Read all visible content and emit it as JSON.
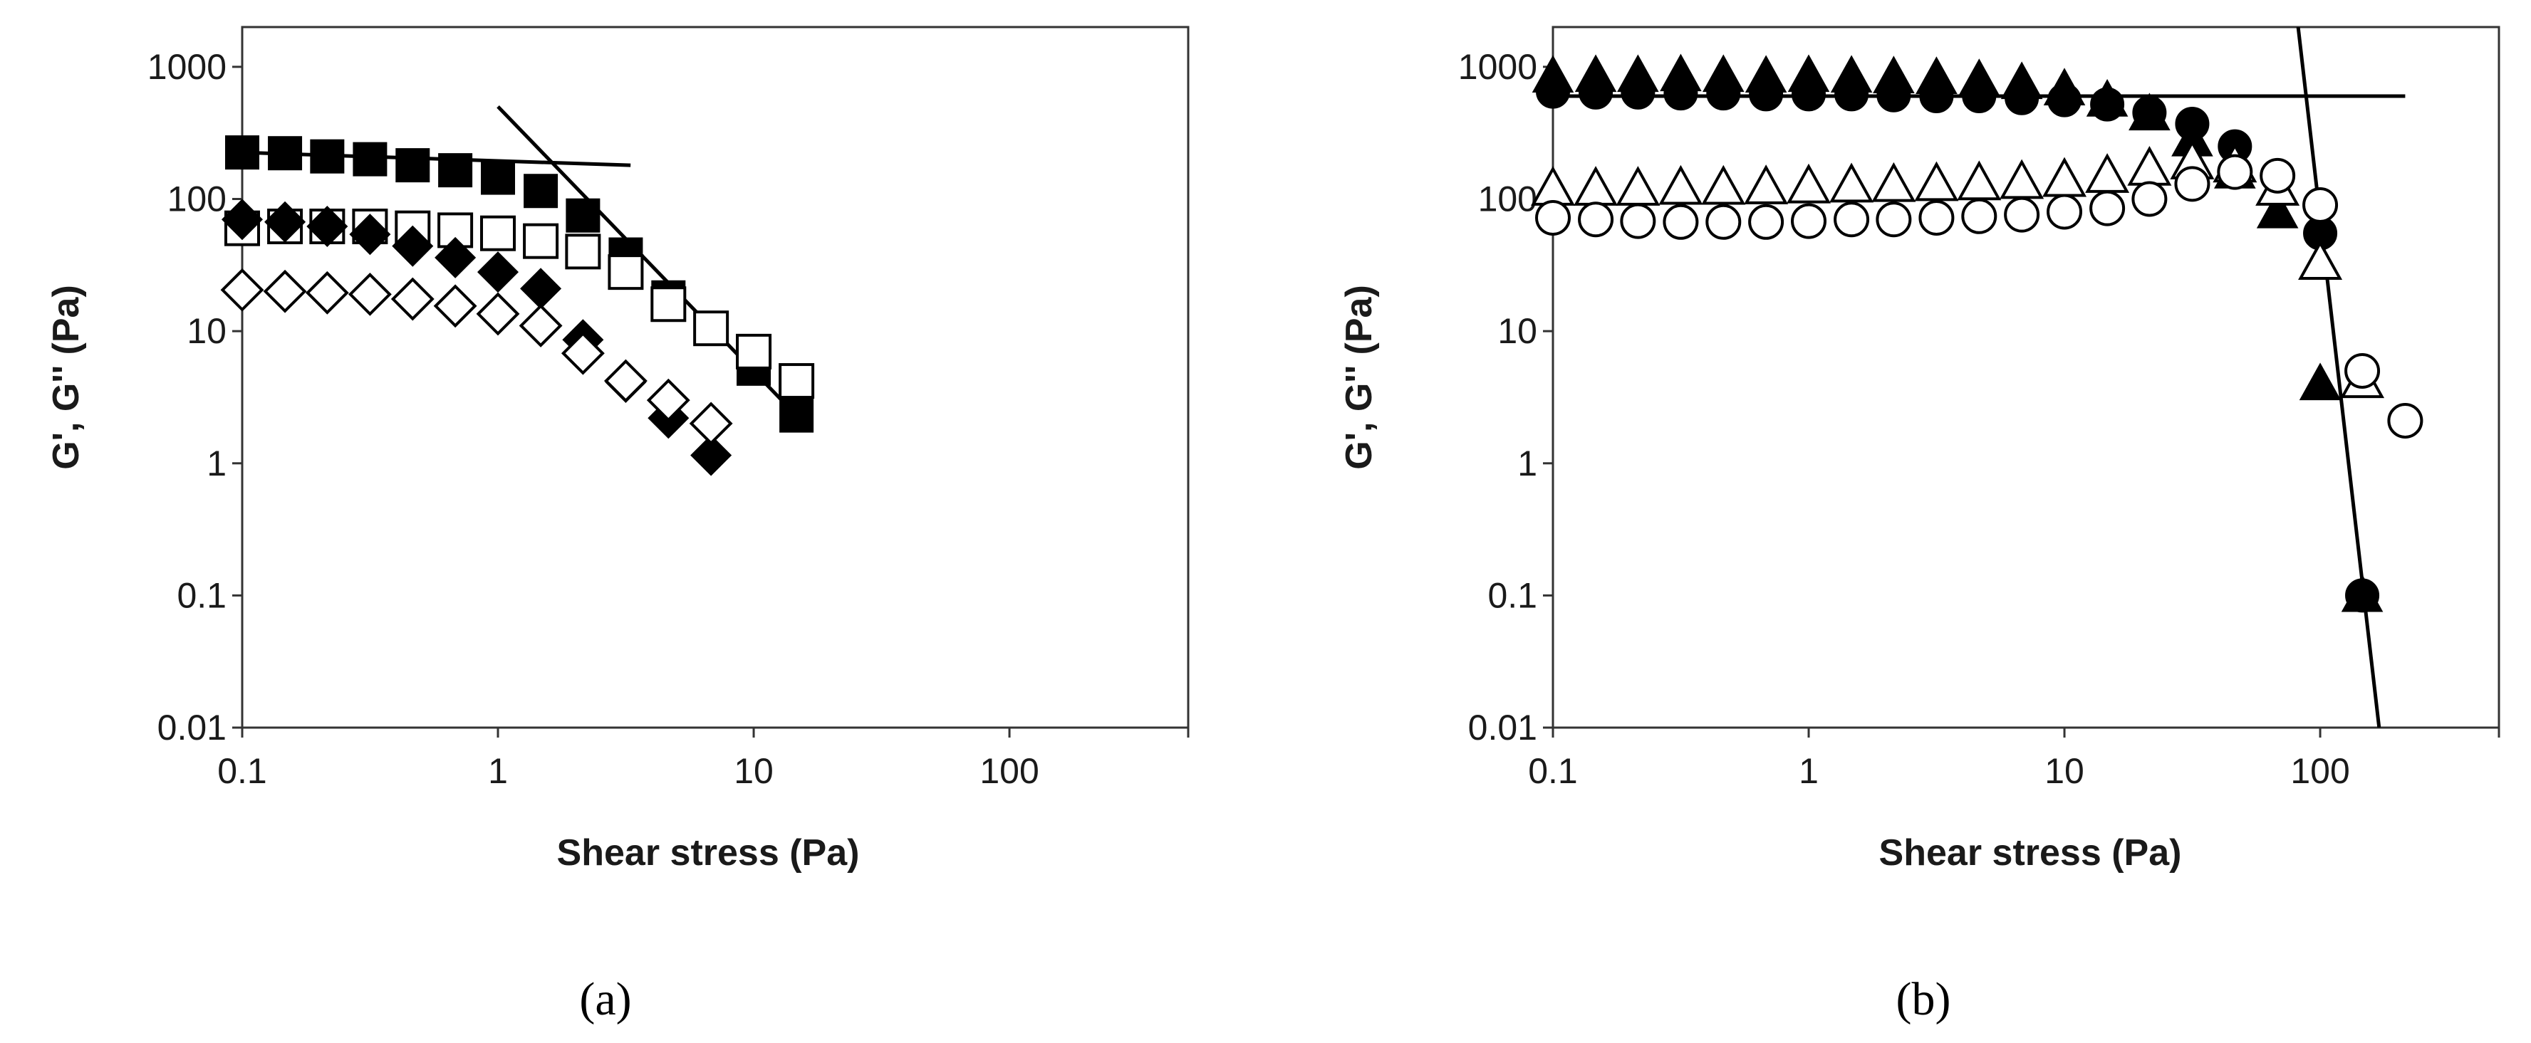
{
  "chart_data": [
    {
      "type": "scatter",
      "panel_label": "(a)",
      "xlabel": "Shear stress (Pa)",
      "ylabel": "G', G'' (Pa)",
      "xscale": "log",
      "yscale": "log",
      "xlim": [
        0.1,
        500
      ],
      "ylim": [
        0.01,
        2000
      ],
      "x_ticks": [
        0.1,
        1,
        10,
        100
      ],
      "x_tick_labels": [
        "0.1",
        "1",
        "10",
        "100"
      ],
      "y_ticks": [
        0.01,
        0.1,
        1,
        10,
        100,
        1000
      ],
      "y_tick_labels": [
        "0.01",
        "0.1",
        "1",
        "10",
        "100",
        "1000"
      ],
      "grid": false,
      "series": [
        {
          "marker": "square",
          "filled": true,
          "x": [
            0.1,
            0.147,
            0.215,
            0.316,
            0.464,
            0.681,
            1.0,
            1.47,
            2.15,
            3.16,
            4.64,
            6.81,
            10.0,
            14.7
          ],
          "y": [
            225,
            222,
            210,
            200,
            180,
            165,
            145,
            115,
            75,
            38,
            18,
            10.5,
            5.2,
            2.3
          ]
        },
        {
          "marker": "square",
          "filled": false,
          "x": [
            0.1,
            0.147,
            0.215,
            0.316,
            0.464,
            0.681,
            1.0,
            1.47,
            2.15,
            3.16,
            4.64,
            6.81,
            10.0,
            14.7
          ],
          "y": [
            60,
            62,
            62,
            62,
            60,
            58,
            55,
            48,
            40,
            28,
            16,
            10.5,
            7,
            4.2
          ]
        },
        {
          "marker": "diamond",
          "filled": true,
          "x": [
            0.1,
            0.147,
            0.215,
            0.316,
            0.464,
            0.681,
            1.0,
            1.47,
            2.15,
            3.16,
            4.64,
            6.81
          ],
          "y": [
            70,
            67,
            62,
            54,
            44,
            36,
            28,
            21,
            8.6,
            4.1,
            2.2,
            1.15
          ]
        },
        {
          "marker": "diamond",
          "filled": false,
          "x": [
            0.1,
            0.147,
            0.215,
            0.316,
            0.464,
            0.681,
            1.0,
            1.47,
            2.15,
            3.16,
            4.64,
            6.81
          ],
          "y": [
            20.5,
            20,
            19.5,
            19,
            17.5,
            15.5,
            13.5,
            11,
            6.8,
            4.2,
            3,
            2
          ]
        }
      ],
      "lines": [
        {
          "x": [
            0.1,
            3.3
          ],
          "y": [
            225,
            180
          ]
        },
        {
          "x": [
            1.0,
            14.7
          ],
          "y": [
            500,
            2.3
          ]
        }
      ]
    },
    {
      "type": "scatter",
      "panel_label": "(b)",
      "xlabel": "Shear stress (Pa)",
      "ylabel": "G', G'' (Pa)",
      "xscale": "log",
      "yscale": "log",
      "xlim": [
        0.1,
        500
      ],
      "ylim": [
        0.01,
        2000
      ],
      "x_ticks": [
        0.1,
        1,
        10,
        100
      ],
      "x_tick_labels": [
        "0.1",
        "1",
        "10",
        "100"
      ],
      "y_ticks": [
        0.01,
        0.1,
        1,
        10,
        100,
        1000
      ],
      "y_tick_labels": [
        "0.01",
        "0.1",
        "1",
        "10",
        "100",
        "1000"
      ],
      "grid": false,
      "series": [
        {
          "marker": "triangle",
          "filled": true,
          "x": [
            0.1,
            0.147,
            0.215,
            0.316,
            0.464,
            0.681,
            1.0,
            1.47,
            2.15,
            3.16,
            4.64,
            6.81,
            10.0,
            14.7,
            21.5,
            31.6,
            46.4,
            68.1,
            100,
            146
          ],
          "y": [
            850,
            860,
            860,
            870,
            860,
            850,
            860,
            850,
            840,
            830,
            800,
            760,
            680,
            560,
            440,
            280,
            160,
            80,
            4,
            0.1
          ]
        },
        {
          "marker": "circle",
          "filled": true,
          "x": [
            0.1,
            0.147,
            0.215,
            0.316,
            0.464,
            0.681,
            1.0,
            1.47,
            2.15,
            3.16,
            4.64,
            6.81,
            10.0,
            14.7,
            21.5,
            31.6,
            46.4,
            68.1,
            100,
            146
          ],
          "y": [
            650,
            640,
            640,
            630,
            630,
            620,
            620,
            620,
            610,
            600,
            600,
            580,
            560,
            520,
            450,
            370,
            250,
            150,
            55,
            0.1
          ]
        },
        {
          "marker": "triangle",
          "filled": false,
          "x": [
            0.1,
            0.147,
            0.215,
            0.316,
            0.464,
            0.681,
            1.0,
            1.47,
            2.15,
            3.16,
            4.64,
            6.81,
            10.0,
            14.7,
            21.5,
            31.6,
            46.4,
            68.1,
            100,
            146
          ],
          "y": [
            120,
            120,
            120,
            122,
            122,
            123,
            125,
            127,
            128,
            130,
            132,
            135,
            140,
            150,
            170,
            190,
            180,
            120,
            33,
            4.2
          ]
        },
        {
          "marker": "circle",
          "filled": false,
          "x": [
            0.1,
            0.147,
            0.215,
            0.316,
            0.464,
            0.681,
            1.0,
            1.47,
            2.15,
            3.16,
            4.64,
            6.81,
            10.0,
            14.7,
            21.5,
            31.6,
            46.4,
            68.1,
            100,
            146,
            215
          ],
          "y": [
            72,
            70,
            68,
            67,
            67,
            67,
            68,
            70,
            70,
            72,
            74,
            76,
            80,
            85,
            100,
            130,
            160,
            150,
            90,
            5.0,
            2.1
          ]
        }
      ],
      "lines": [
        {
          "x": [
            0.1,
            215
          ],
          "y": [
            600,
            600
          ]
        },
        {
          "x": [
            82,
            170
          ],
          "y": [
            2000,
            0.01
          ]
        }
      ]
    }
  ]
}
